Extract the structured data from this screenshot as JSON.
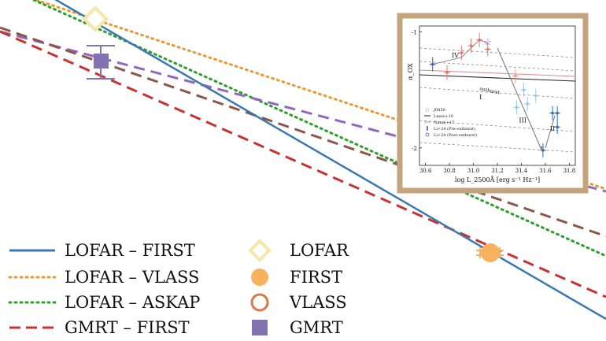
{
  "chart_data": {
    "type": "line",
    "title": "",
    "xlabel": "",
    "ylabel": "",
    "grid": false,
    "legend_position": "bottom-left",
    "colors": {
      "lofar_first": "#3a78b0",
      "lofar_vlass": "#e89a35",
      "lofar_askap": "#2ca02c",
      "gmrt_first": "#c83232",
      "purple": "#9467bd",
      "brown": "#8c564b",
      "lofar_marker": "#f6e6a9",
      "first_marker": "#f6b25e",
      "vlass_marker": "#d9764a",
      "gmrt_marker": "#8172b2",
      "inset_frame": "#c4a47c"
    },
    "legend": {
      "lines": [
        {
          "key": "lofar_first",
          "label": "LOFAR – FIRST",
          "style": "solid"
        },
        {
          "key": "lofar_vlass",
          "label": "LOFAR – VLASS",
          "style": "dotted"
        },
        {
          "key": "lofar_askap",
          "label": "LOFAR – ASKAP",
          "style": "dotted"
        },
        {
          "key": "gmrt_first",
          "label": "GMRT – FIRST",
          "style": "dashed"
        }
      ],
      "markers": [
        {
          "key": "lofar_marker",
          "label": "LOFAR",
          "shape": "open-diamond"
        },
        {
          "key": "first_marker",
          "label": "FIRST",
          "shape": "filled-circle"
        },
        {
          "key": "vlass_marker",
          "label": "VLASS",
          "shape": "open-circle"
        },
        {
          "key": "gmrt_marker",
          "label": "GMRT",
          "shape": "filled-square"
        }
      ]
    },
    "inset": {
      "xlabel": "log L_2500Å [erg s⁻¹ Hz⁻¹]",
      "ylabel": "α_OX",
      "xlim": [
        30.55,
        31.85
      ],
      "ylim": [
        -2.15,
        -0.95
      ],
      "xticks": [
        "30.6",
        "30.8",
        "31.0",
        "31.2",
        "31.4",
        "31.6",
        "31.8"
      ],
      "yticks": [
        "-1",
        "-2"
      ],
      "region_labels": [
        "IV",
        "III",
        "II",
        "I",
        "outburst"
      ],
      "legend": [
        {
          "label": "J0850",
          "shape": "open-star"
        },
        {
          "label": "Lusso+10",
          "shape": "line"
        },
        {
          "label": "Nanni+17",
          "shape": "line"
        },
        {
          "label": "Li+24 (Pre-outburst)",
          "shape": "plus"
        },
        {
          "label": "Li+24 (Post-outburst)",
          "shape": "circle"
        }
      ]
    }
  }
}
